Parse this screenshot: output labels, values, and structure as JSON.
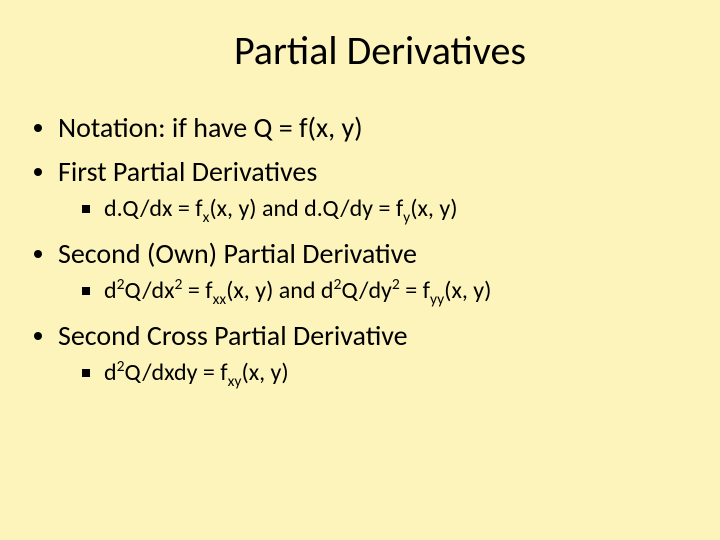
{
  "slide": {
    "background_color": "#fdf4bb",
    "text_color": "#000000",
    "title": "Partial Derivatives",
    "title_fontsize": 40,
    "body_fontsize": 28,
    "sub_fontsize": 24,
    "font_family": "Calibri",
    "bullets": [
      {
        "text_prefix": "Notation: if have Q = f(x,",
        "text_suffix": "y)",
        "sub": []
      },
      {
        "text": "First Partial Derivatives",
        "sub": [
          {
            "p1": "d.Q/dx = f",
            "s1": "x",
            "p2": "(x,",
            "p2b": "y) and d.Q/dy = f",
            "s2": "y",
            "p3": "(x,",
            "p3b": "y)"
          }
        ]
      },
      {
        "text": "Second (Own) Partial Derivative",
        "sub": [
          {
            "d1": "d",
            "e1": "2",
            "q1": "Q/dx",
            "e2": "2",
            "eq1": " = f",
            "ss1": "xx",
            "mid1": "(x,",
            "mid1b": "y) and d",
            "e3": "2",
            "q2": "Q/dy",
            "e4": "2",
            "eq2": " = f",
            "ss2": "yy",
            "end": "(x,",
            "endb": "y)"
          }
        ]
      },
      {
        "text": "Second Cross Partial Derivative",
        "sub": [
          {
            "d1": "d",
            "e1": "2",
            "q1": "Q/dxdy = f",
            "ss1": "xy",
            "end": "(x,",
            "endb": "y)"
          }
        ]
      }
    ]
  }
}
